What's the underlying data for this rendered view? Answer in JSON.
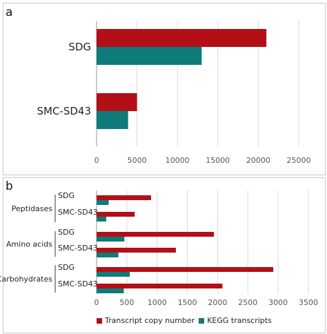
{
  "panel_a": {
    "label": "a"
  },
  "panel_b": {
    "label": "b"
  },
  "colors": {
    "transcript": "#b30f17",
    "kegg": "#0f7a7a",
    "grid": "#d9d9d9"
  },
  "chart_data": [
    {
      "type": "bar",
      "orientation": "horizontal",
      "panel": "a",
      "categories": [
        "SDG",
        "SMC-SD43"
      ],
      "series": [
        {
          "name": "Transcript copy number",
          "values": [
            21000,
            5000
          ]
        },
        {
          "name": "KEGG transcripts",
          "values": [
            13000,
            3900
          ]
        }
      ],
      "xlim": [
        0,
        25000
      ],
      "xticks": [
        "0",
        "5000",
        "10000",
        "15000",
        "20000",
        "25000"
      ],
      "grid": true
    },
    {
      "type": "bar",
      "orientation": "horizontal",
      "panel": "b",
      "groups": [
        "Peptidases",
        "Amino acids",
        "Carbohydrates"
      ],
      "categories": [
        "SDG",
        "SMC-SD43",
        "SDG",
        "SMC-SD43",
        "SDG",
        "SMC-SD43"
      ],
      "series": [
        {
          "name": "Transcript copy number",
          "values": [
            900,
            630,
            1940,
            1310,
            2920,
            2080
          ]
        },
        {
          "name": "KEGG transcripts",
          "values": [
            200,
            160,
            460,
            360,
            550,
            450
          ]
        }
      ],
      "xlim": [
        0,
        3500
      ],
      "xticks": [
        "0",
        "500",
        "1000",
        "1500",
        "2000",
        "2500",
        "3000",
        "3500"
      ],
      "legend": "bottom",
      "grid": true
    }
  ]
}
